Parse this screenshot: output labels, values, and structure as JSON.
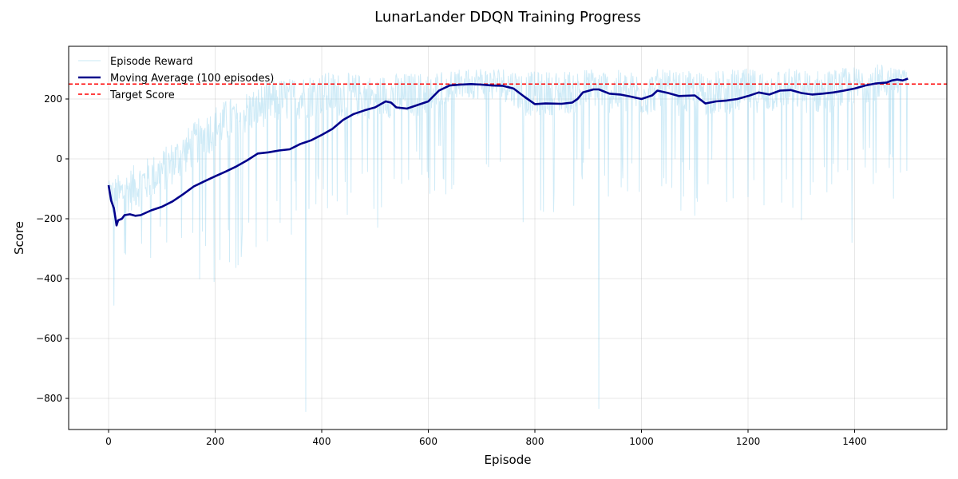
{
  "chart_data": {
    "type": "line",
    "title": "LunarLander DDQN Training Progress",
    "xlabel": "Episode",
    "ylabel": "Score",
    "xlim": [
      -75,
      1575
    ],
    "ylim": [
      -905,
      378
    ],
    "xticks": [
      0,
      200,
      400,
      600,
      800,
      1000,
      1200,
      1400
    ],
    "xtick_labels": [
      "0",
      "200",
      "400",
      "600",
      "800",
      "1000",
      "1200",
      "1400"
    ],
    "yticks": [
      200,
      0,
      -200,
      -400,
      -600,
      -800
    ],
    "ytick_labels": [
      "200",
      "0",
      "−200",
      "−400",
      "−600",
      "−800"
    ],
    "grid": true,
    "legend_position": "upper left",
    "series": [
      {
        "name": "Episode Reward",
        "style": "thin line, light blue, alpha ~0.4",
        "color": "#87ceeb",
        "description": "Noisy per-episode reward; ranges roughly -490 to 0 early, climbs to ~100-300 band after episode ~300, with frequent deep negative spikes; extreme lows ~-845 near episode 370 and ~-835 near episode 920",
        "notable_points": [
          {
            "x": 10,
            "y": -490
          },
          {
            "x": 370,
            "y": -845
          },
          {
            "x": 505,
            "y": -230
          },
          {
            "x": 920,
            "y": -835
          },
          {
            "x": 1100,
            "y": -190
          },
          {
            "x": 1300,
            "y": -205
          },
          {
            "x": 1395,
            "y": -280
          }
        ],
        "envelope_upper": [
          {
            "x": 0,
            "y": -60
          },
          {
            "x": 100,
            "y": 40
          },
          {
            "x": 200,
            "y": 190
          },
          {
            "x": 300,
            "y": 270
          },
          {
            "x": 400,
            "y": 300
          },
          {
            "x": 500,
            "y": 290
          },
          {
            "x": 600,
            "y": 300
          },
          {
            "x": 700,
            "y": 300
          },
          {
            "x": 800,
            "y": 300
          },
          {
            "x": 900,
            "y": 310
          },
          {
            "x": 1000,
            "y": 300
          },
          {
            "x": 1100,
            "y": 300
          },
          {
            "x": 1200,
            "y": 310
          },
          {
            "x": 1300,
            "y": 305
          },
          {
            "x": 1400,
            "y": 310
          },
          {
            "x": 1440,
            "y": 320
          },
          {
            "x": 1499,
            "y": 300
          }
        ],
        "typical_low": [
          {
            "x": 0,
            "y": -300
          },
          {
            "x": 100,
            "y": -200
          },
          {
            "x": 200,
            "y": -250
          },
          {
            "x": 300,
            "y": -100
          },
          {
            "x": 400,
            "y": -50
          },
          {
            "x": 500,
            "y": 0
          },
          {
            "x": 600,
            "y": 50
          },
          {
            "x": 700,
            "y": 50
          },
          {
            "x": 780,
            "y": -80
          },
          {
            "x": 900,
            "y": 50
          },
          {
            "x": 1000,
            "y": 0
          },
          {
            "x": 1100,
            "y": 0
          },
          {
            "x": 1200,
            "y": 0
          },
          {
            "x": 1300,
            "y": 0
          },
          {
            "x": 1400,
            "y": 50
          },
          {
            "x": 1499,
            "y": 40
          }
        ]
      },
      {
        "name": "Moving Average (100 episodes)",
        "color": "#00008b",
        "x": [
          0,
          5,
          10,
          15,
          18,
          25,
          30,
          40,
          50,
          60,
          70,
          80,
          100,
          120,
          140,
          160,
          180,
          200,
          220,
          240,
          260,
          280,
          300,
          320,
          340,
          360,
          380,
          400,
          420,
          440,
          460,
          480,
          500,
          520,
          530,
          540,
          560,
          580,
          600,
          620,
          640,
          660,
          680,
          700,
          720,
          740,
          760,
          780,
          800,
          820,
          850,
          870,
          880,
          890,
          910,
          920,
          940,
          960,
          980,
          1000,
          1020,
          1030,
          1050,
          1070,
          1100,
          1120,
          1140,
          1160,
          1180,
          1200,
          1220,
          1240,
          1260,
          1280,
          1300,
          1320,
          1340,
          1360,
          1380,
          1400,
          1420,
          1440,
          1460,
          1470,
          1480,
          1490,
          1500
        ],
        "y": [
          -88,
          -140,
          -165,
          -222,
          -205,
          -200,
          -188,
          -185,
          -190,
          -188,
          -180,
          -172,
          -160,
          -142,
          -118,
          -92,
          -75,
          -58,
          -42,
          -25,
          -5,
          18,
          22,
          28,
          32,
          50,
          62,
          80,
          100,
          130,
          150,
          162,
          172,
          192,
          188,
          172,
          168,
          180,
          192,
          228,
          245,
          248,
          250,
          248,
          245,
          244,
          235,
          208,
          183,
          185,
          184,
          188,
          200,
          222,
          232,
          232,
          218,
          215,
          208,
          200,
          212,
          228,
          220,
          210,
          212,
          185,
          192,
          195,
          200,
          210,
          222,
          215,
          228,
          230,
          220,
          215,
          218,
          222,
          228,
          235,
          245,
          252,
          255,
          262,
          265,
          262,
          268
        ]
      },
      {
        "name": "Target Score",
        "color": "#ff0000",
        "style": "dashed",
        "y": 250
      }
    ]
  },
  "legend": {
    "items": [
      {
        "label": "Episode Reward",
        "color": "#87ceeb"
      },
      {
        "label": "Moving Average (100 episodes)",
        "color": "#00008b"
      },
      {
        "label": "Target Score",
        "color": "#ff0000"
      }
    ]
  }
}
